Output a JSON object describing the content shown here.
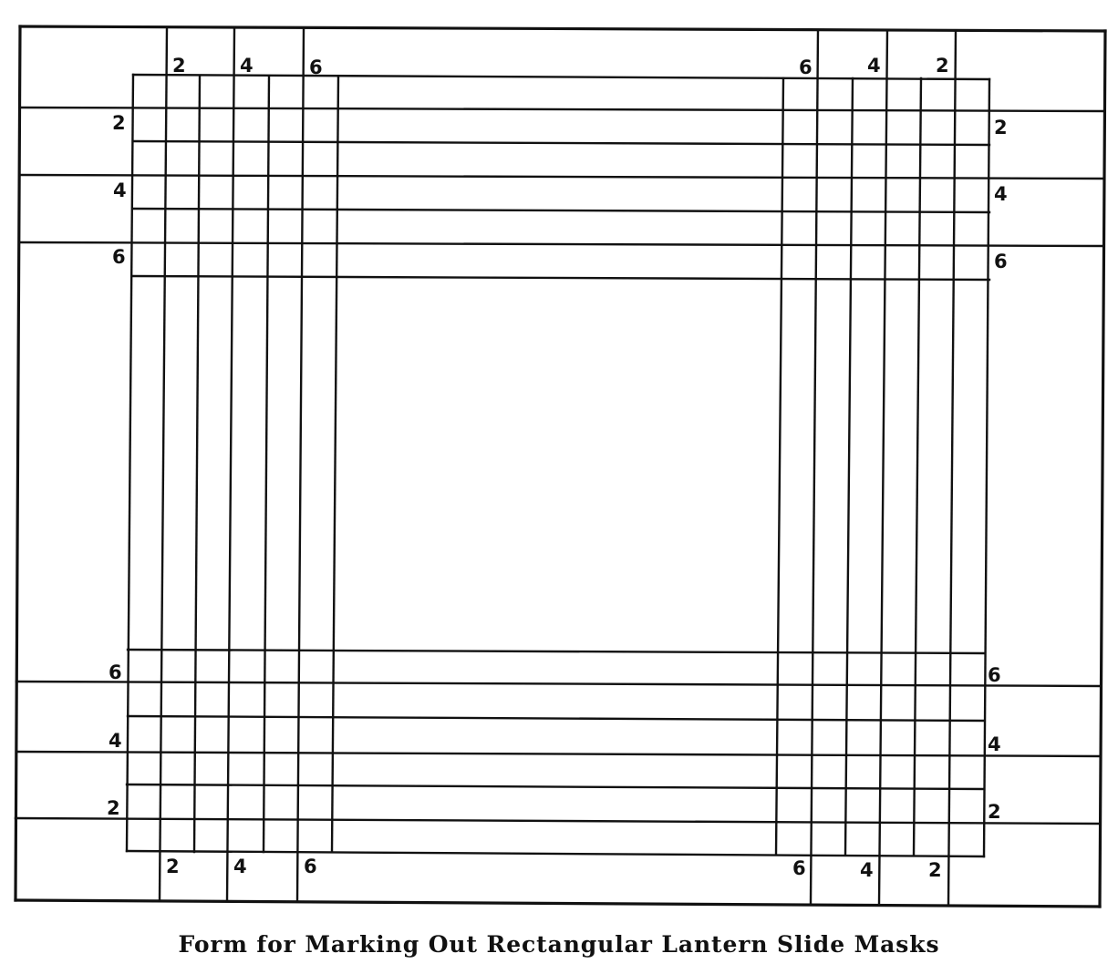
{
  "diagram": {
    "caption": "Form for Marking Out Rectangular Lantern Slide Masks",
    "labels": {
      "top_left": [
        "2",
        "4",
        "6"
      ],
      "top_right": [
        "6",
        "4",
        "2"
      ],
      "left_upper": [
        "2",
        "4",
        "6"
      ],
      "right_upper": [
        "2",
        "4",
        "6"
      ],
      "left_lower": [
        "6",
        "4",
        "2"
      ],
      "right_lower": [
        "6",
        "4",
        "2"
      ],
      "bottom_left": [
        "2",
        "4",
        "6"
      ],
      "bottom_right": [
        "6",
        "4",
        "2"
      ]
    }
  }
}
